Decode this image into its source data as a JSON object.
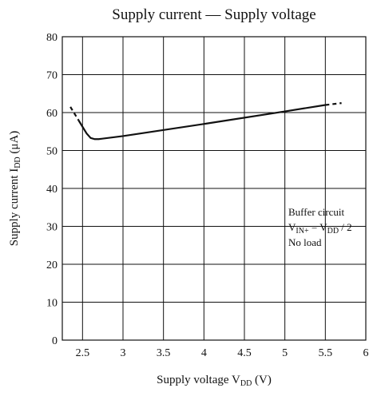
{
  "chart_data": {
    "type": "line",
    "title": "Supply current — Supply voltage",
    "x_label": [
      "Supply voltage  V",
      "DD",
      "  (V)"
    ],
    "y_label": [
      "Supply current  I",
      "DD",
      "  (μA)"
    ],
    "annotation": [
      [
        "Buffer circuit"
      ],
      [
        "V",
        "IN+",
        " = V",
        "DD",
        " / 2"
      ],
      [
        "No load"
      ]
    ],
    "xlim": [
      2.25,
      6
    ],
    "xticks": [
      2.5,
      3,
      3.5,
      4,
      4.5,
      5,
      5.5,
      6
    ],
    "ylim": [
      0,
      80
    ],
    "yticks": [
      0,
      10,
      20,
      30,
      40,
      50,
      60,
      70,
      80
    ],
    "grid": true,
    "series": [
      {
        "style": "dashed",
        "color": "#111111",
        "x": [
          2.35,
          2.45
        ],
        "values": [
          61.5,
          58
        ]
      },
      {
        "style": "solid",
        "color": "#111111",
        "x": [
          2.45,
          2.55,
          2.6,
          2.65,
          2.7,
          3,
          4,
          5,
          5.5
        ],
        "values": [
          58,
          54.5,
          53.3,
          53,
          53,
          53.8,
          57,
          60.3,
          62
        ]
      },
      {
        "style": "dashed",
        "color": "#111111",
        "x": [
          5.5,
          5.7
        ],
        "values": [
          62,
          62.5
        ]
      }
    ]
  }
}
